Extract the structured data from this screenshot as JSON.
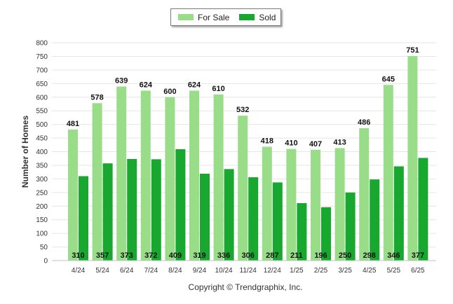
{
  "chart_data": {
    "type": "bar",
    "ylabel": "Number of Homes",
    "xlabel": "",
    "ylim": [
      0,
      800
    ],
    "yticks": [
      0,
      50,
      100,
      150,
      200,
      250,
      300,
      350,
      400,
      450,
      500,
      550,
      600,
      650,
      700,
      750,
      800
    ],
    "grid": true,
    "legend_position": "top-center",
    "categories": [
      "4/24",
      "5/24",
      "6/24",
      "7/24",
      "8/24",
      "9/24",
      "10/24",
      "11/24",
      "12/24",
      "1/25",
      "2/25",
      "3/25",
      "4/25",
      "5/25",
      "6/25"
    ],
    "series": [
      {
        "name": "For Sale",
        "color": "#99dd88",
        "values": [
          481,
          578,
          639,
          624,
          600,
          624,
          610,
          532,
          418,
          410,
          407,
          413,
          486,
          645,
          751
        ]
      },
      {
        "name": "Sold",
        "color": "#18a830",
        "values": [
          310,
          357,
          373,
          372,
          409,
          319,
          336,
          306,
          287,
          211,
          196,
          250,
          298,
          346,
          377
        ]
      }
    ]
  },
  "footer": {
    "copyright": "Copyright © Trendgraphix, Inc."
  }
}
